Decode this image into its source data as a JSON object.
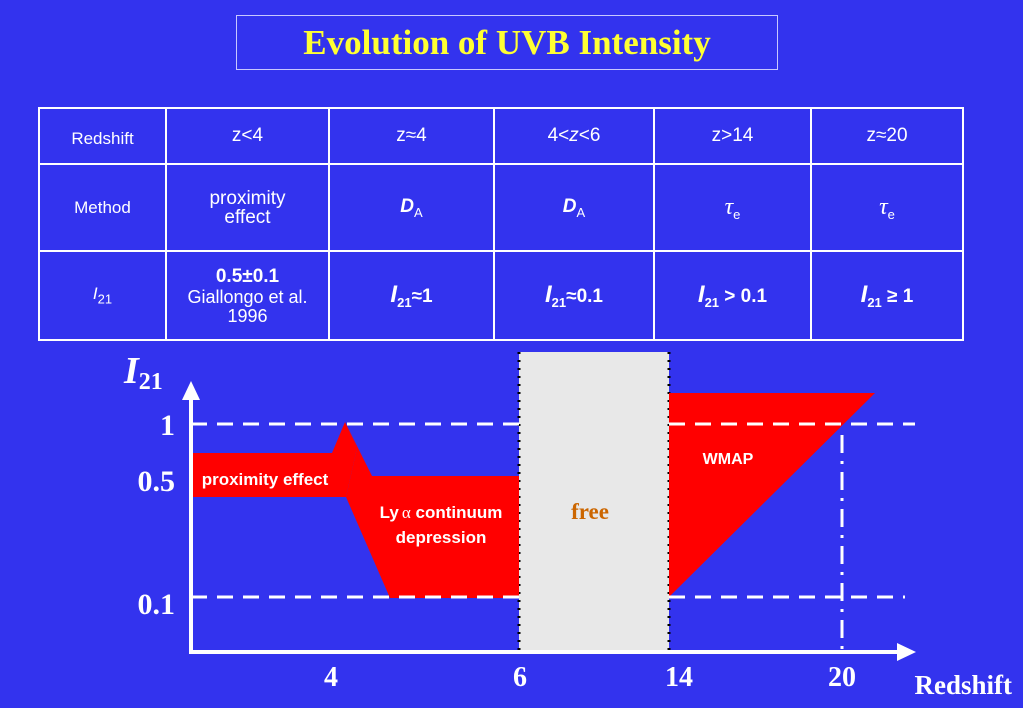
{
  "title": "Evolution of UVB Intensity",
  "table": {
    "row_labels": {
      "redshift": "Redshift",
      "method": "Method"
    },
    "redshift": [
      "z<4",
      "z≈4",
      "4<",
      "z",
      "<6",
      "z>14",
      "z≈20"
    ],
    "method": {
      "proximity": "proximity effect",
      "da_main": "D",
      "da_sub": "A",
      "tau_main": "τ",
      "tau_sub": "e"
    },
    "i21": {
      "label_main": "I",
      "label_sub": "21",
      "c1_value": "0.5±0.1",
      "c1_ref": "Giallongo et al. 1996",
      "c2_rel": "≈1",
      "c3_rel": "≈0.1",
      "c4_rel": " > 0.1",
      "c5_rel": " ≥ 1"
    }
  },
  "diagram": {
    "y_axis_main": "I",
    "y_axis_sub": "21",
    "x_axis_label": "Redshift",
    "y_ticks": [
      "1",
      "0.5",
      "0.1"
    ],
    "x_ticks": [
      "4",
      "6",
      "14",
      "20"
    ],
    "regions": {
      "proximity": "proximity effect",
      "lya_1": "Ly",
      "lya_alpha": "α",
      "lya_2": " continuum",
      "lya_3": "depression",
      "free": "free",
      "wmap": "WMAP"
    },
    "colors": {
      "background": "#3333ee",
      "region": "#ff0000",
      "free": "#e8e8e8",
      "axis": "#ffffff",
      "title": "#ffff33",
      "free_text": "#cc6600"
    }
  }
}
